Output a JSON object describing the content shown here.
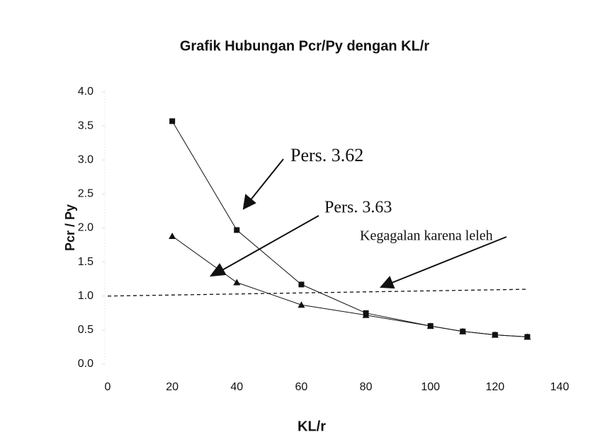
{
  "chart_data": {
    "type": "line",
    "title": "Grafik Hubungan Pcr/Py dengan KL/r",
    "x_label": "KL/r",
    "y_label": "Pcr / Py",
    "xlim": [
      0,
      140
    ],
    "xticks": [
      0,
      20,
      40,
      60,
      80,
      100,
      120,
      140
    ],
    "ylim": [
      0,
      4
    ],
    "yticks": [
      {
        "value": 0,
        "label": "0.0"
      },
      0.5,
      {
        "value": 1,
        "label": "1.0"
      },
      1.5,
      {
        "value": 2,
        "label": "2.0"
      },
      2.5,
      {
        "value": 3,
        "label": "3.0"
      },
      3.5,
      {
        "value": 4,
        "label": "4.0"
      }
    ],
    "grid": false,
    "series": [
      {
        "name": "Pers. 3.62",
        "color": "#111111",
        "marker": "square",
        "x": [
          20,
          40,
          60,
          80,
          100,
          110,
          120,
          130
        ],
        "values": [
          3.57,
          1.97,
          1.17,
          0.75,
          0.56,
          0.48,
          0.43,
          0.4
        ]
      },
      {
        "name": "Pers. 3.63",
        "color": "#111111",
        "marker": "triangle",
        "x": [
          20,
          40,
          60,
          80,
          100,
          110,
          120,
          130
        ],
        "values": [
          1.88,
          1.2,
          0.87,
          0.72,
          0.56,
          0.48,
          0.43,
          0.4
        ]
      },
      {
        "name": "Kegagalan karena leleh",
        "color": "#111111",
        "marker": "none",
        "dashed": true,
        "x": [
          0,
          130
        ],
        "values": [
          1.0,
          1.1
        ]
      }
    ]
  }
}
